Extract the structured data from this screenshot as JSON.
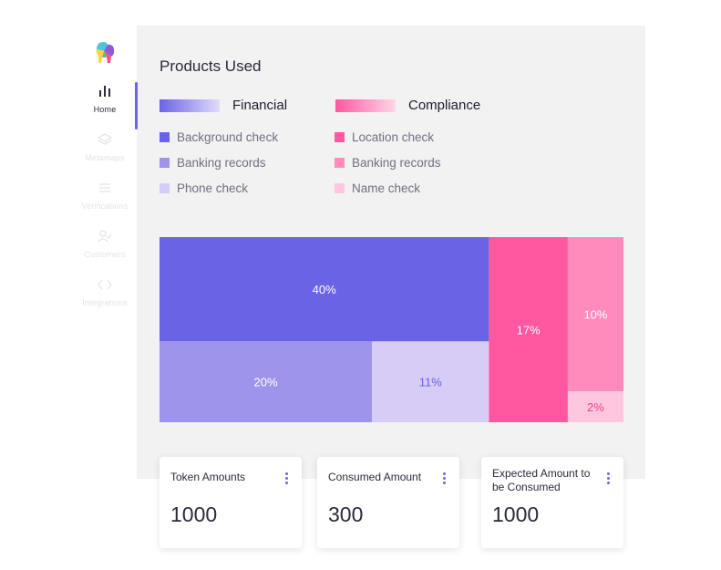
{
  "sidebar": {
    "items": [
      {
        "label": "Home",
        "icon": "bar-chart-icon",
        "active": true
      },
      {
        "label": "Metamaps",
        "icon": "layers-icon",
        "active": false
      },
      {
        "label": "Verifications",
        "icon": "list-icon",
        "active": false
      },
      {
        "label": "Customers",
        "icon": "user-check-icon",
        "active": false
      },
      {
        "label": "Integrations",
        "icon": "code-icon",
        "active": false
      }
    ]
  },
  "colors": {
    "accent": "#6c63e8",
    "background_check": "#6b63e6",
    "fin_banking_records": "#9f94ec",
    "phone_check": "#d6ccf6",
    "location_check": "#ff57a0",
    "comp_banking_records": "#ff8bbd",
    "name_check": "#ffc7df"
  },
  "chart_data": {
    "type": "treemap",
    "title": "Products Used",
    "groups": [
      {
        "name": "Financial",
        "items": [
          {
            "label": "Background check",
            "value": 40,
            "display": "40%"
          },
          {
            "label": "Banking records",
            "value": 20,
            "display": "20%"
          },
          {
            "label": "Phone check",
            "value": 11,
            "display": "11%"
          }
        ]
      },
      {
        "name": "Compliance",
        "items": [
          {
            "label": "Location check",
            "value": 17,
            "display": "17%"
          },
          {
            "label": "Banking records",
            "value": 10,
            "display": "10%"
          },
          {
            "label": "Name check",
            "value": 2,
            "display": "2%"
          }
        ]
      }
    ]
  },
  "cards": [
    {
      "title": "Token Amounts",
      "value": "1000"
    },
    {
      "title": "Consumed Amount",
      "value": "300"
    },
    {
      "title": "Expected Amount to be Consumed",
      "value": "1000"
    }
  ]
}
